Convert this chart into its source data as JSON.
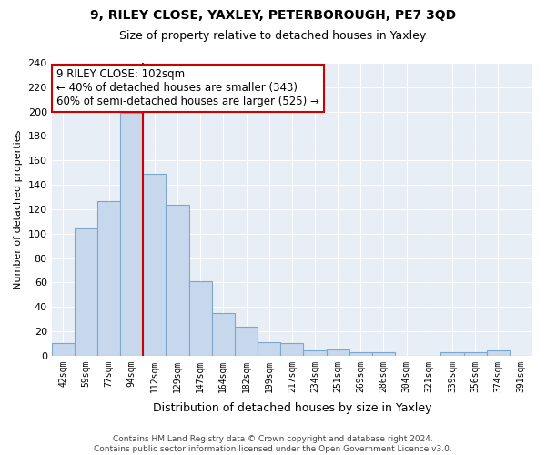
{
  "title": "9, RILEY CLOSE, YAXLEY, PETERBOROUGH, PE7 3QD",
  "subtitle": "Size of property relative to detached houses in Yaxley",
  "xlabel": "Distribution of detached houses by size in Yaxley",
  "ylabel": "Number of detached properties",
  "bin_labels": [
    "42sqm",
    "59sqm",
    "77sqm",
    "94sqm",
    "112sqm",
    "129sqm",
    "147sqm",
    "164sqm",
    "182sqm",
    "199sqm",
    "217sqm",
    "234sqm",
    "251sqm",
    "269sqm",
    "286sqm",
    "304sqm",
    "321sqm",
    "339sqm",
    "356sqm",
    "374sqm",
    "391sqm"
  ],
  "bar_heights": [
    10,
    104,
    127,
    199,
    149,
    124,
    61,
    35,
    24,
    11,
    10,
    4,
    5,
    3,
    3,
    0,
    0,
    3,
    3,
    4,
    0
  ],
  "bar_color": "#c8d8ec",
  "bar_edge_color": "#7aa8cc",
  "highlight_bar_index": 3,
  "highlight_color": "#cc0000",
  "ylim": [
    0,
    240
  ],
  "yticks": [
    0,
    20,
    40,
    60,
    80,
    100,
    120,
    140,
    160,
    180,
    200,
    220,
    240
  ],
  "annotation_text": "9 RILEY CLOSE: 102sqm\n← 40% of detached houses are smaller (343)\n60% of semi-detached houses are larger (525) →",
  "footer_line1": "Contains HM Land Registry data © Crown copyright and database right 2024.",
  "footer_line2": "Contains public sector information licensed under the Open Government Licence v3.0.",
  "background_color": "#ffffff",
  "plot_bg_color": "#e8eef5",
  "grid_color": "#ffffff"
}
